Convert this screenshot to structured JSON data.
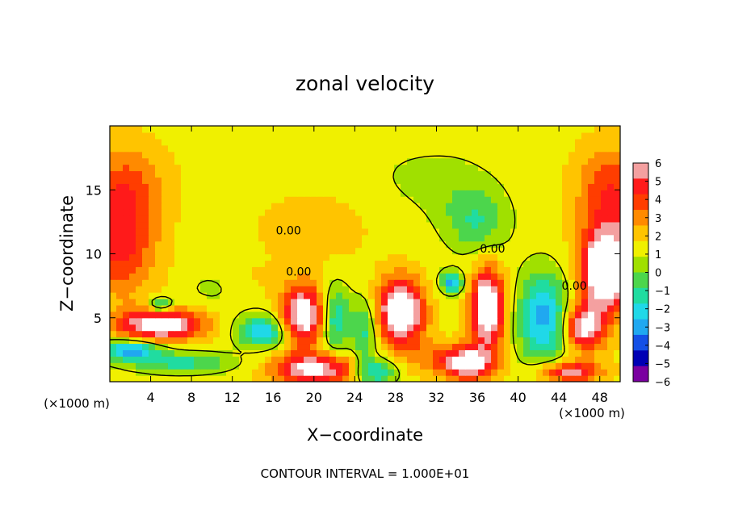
{
  "chart_data": {
    "type": "heatmap",
    "title": "zonal velocity",
    "xlabel": "X−coordinate",
    "ylabel": "Z−coordinate",
    "x_unit_left": "(×1000 m)",
    "x_unit_right": "(×1000 m)",
    "footer": "CONTOUR INTERVAL = 1.000E+01",
    "xlim": [
      0,
      50
    ],
    "ylim": [
      0,
      20
    ],
    "x_ticks": [
      4,
      8,
      12,
      16,
      20,
      24,
      28,
      32,
      36,
      40,
      44,
      48
    ],
    "y_ticks": [
      5,
      10,
      15
    ],
    "colorbar": {
      "ticks": [
        6,
        5,
        4,
        3,
        2,
        1,
        0,
        -1,
        -2,
        -3,
        -4,
        -5,
        -6
      ],
      "tick_labels": [
        "6",
        "5",
        "4",
        "3",
        "2",
        "1",
        "0",
        "−1",
        "−2",
        "−3",
        "−4",
        "−5",
        "−6"
      ],
      "range": [
        -6,
        6
      ],
      "colors": [
        "#f4a0a0",
        "#ff1a1a",
        "#ff3d00",
        "#ff8a00",
        "#ffc400",
        "#f0f000",
        "#a0e000",
        "#4cd64c",
        "#20dca0",
        "#20d8e8",
        "#20a8f0",
        "#1450e6",
        "#0000b4",
        "#7a00a0"
      ]
    },
    "contour_labels": [
      {
        "text": "0.00",
        "x": 17.5,
        "y": 11.5
      },
      {
        "text": "0.00",
        "x": 18.5,
        "y": 8.3
      },
      {
        "text": "0.00",
        "x": 37.5,
        "y": 10.1
      },
      {
        "text": "0.00",
        "x": 45.5,
        "y": 7.2
      }
    ],
    "field": {
      "background": 0.6,
      "blobs": [
        {
          "x": 1,
          "y": 11.5,
          "sx": 3.5,
          "sy": 4.5,
          "v": 4.2
        },
        {
          "x": 2,
          "y": 16,
          "sx": 4,
          "sy": 3,
          "v": 1.5
        },
        {
          "x": 49,
          "y": 11,
          "sx": 3,
          "sy": 5,
          "v": 4
        },
        {
          "x": 49,
          "y": 16,
          "sx": 3.5,
          "sy": 3,
          "v": 1.6
        },
        {
          "x": 36,
          "y": 12.5,
          "sx": 3,
          "sy": 2.5,
          "v": -2.4
        },
        {
          "x": 34,
          "y": 15,
          "sx": 4,
          "sy": 3,
          "v": -0.8
        },
        {
          "x": 29,
          "y": 16,
          "sx": 5,
          "sy": 3,
          "v": -0.6
        },
        {
          "x": 20,
          "y": 12,
          "sx": 6,
          "sy": 3,
          "v": 0.9
        },
        {
          "x": 5,
          "y": 4.5,
          "sx": 4,
          "sy": 1.2,
          "v": 7
        },
        {
          "x": 5,
          "y": 6,
          "sx": 1.2,
          "sy": 0.6,
          "v": -4
        },
        {
          "x": 2,
          "y": 2.5,
          "sx": 3,
          "sy": 0.8,
          "v": -5
        },
        {
          "x": 7,
          "y": 1.5,
          "sx": 5,
          "sy": 0.8,
          "v": -3
        },
        {
          "x": 19,
          "y": 5.2,
          "sx": 2.2,
          "sy": 2.3,
          "v": 7
        },
        {
          "x": 15,
          "y": 4,
          "sx": 2.5,
          "sy": 1.3,
          "v": -4.5
        },
        {
          "x": 22,
          "y": 5,
          "sx": 1.5,
          "sy": 2.5,
          "v": -4
        },
        {
          "x": 28.5,
          "y": 5.5,
          "sx": 2.2,
          "sy": 2.5,
          "v": 8
        },
        {
          "x": 25,
          "y": 4,
          "sx": 1.3,
          "sy": 2.5,
          "v": -3
        },
        {
          "x": 33.5,
          "y": 7.8,
          "sx": 1.1,
          "sy": 0.8,
          "v": -5
        },
        {
          "x": 37,
          "y": 5.8,
          "sx": 1.6,
          "sy": 3,
          "v": 8
        },
        {
          "x": 42.5,
          "y": 5,
          "sx": 2.5,
          "sy": 3.5,
          "v": -5
        },
        {
          "x": 46.5,
          "y": 4.3,
          "sx": 2,
          "sy": 1.8,
          "v": 6
        },
        {
          "x": 48.5,
          "y": 8.5,
          "sx": 2,
          "sy": 2.5,
          "v": 7
        },
        {
          "x": 20,
          "y": 1,
          "sx": 4,
          "sy": 1.2,
          "v": 6
        },
        {
          "x": 26,
          "y": 0.8,
          "sx": 2,
          "sy": 1,
          "v": -4
        },
        {
          "x": 35,
          "y": 1.5,
          "sx": 2.5,
          "sy": 1.3,
          "v": 7
        },
        {
          "x": 31,
          "y": 2,
          "sx": 2,
          "sy": 1.5,
          "v": 1.5
        },
        {
          "x": 45,
          "y": 0.8,
          "sx": 3,
          "sy": 0.8,
          "v": 5
        },
        {
          "x": 12,
          "y": 8,
          "sx": 5,
          "sy": 1.5,
          "v": 0.6
        },
        {
          "x": 10,
          "y": 7.5,
          "sx": 3,
          "sy": 1.5,
          "v": -1.2
        }
      ]
    }
  }
}
